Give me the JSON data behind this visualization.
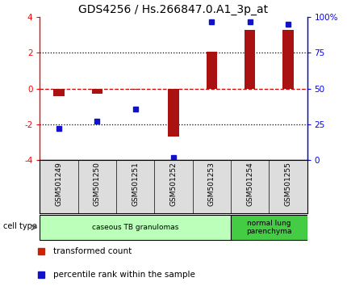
{
  "title": "GDS4256 / Hs.266847.0.A1_3p_at",
  "samples": [
    "GSM501249",
    "GSM501250",
    "GSM501251",
    "GSM501252",
    "GSM501253",
    "GSM501254",
    "GSM501255"
  ],
  "transformed_counts": [
    -0.4,
    -0.3,
    -0.05,
    -2.7,
    2.05,
    3.3,
    3.3
  ],
  "percentile_ranks": [
    22,
    27,
    36,
    2,
    97,
    97,
    95
  ],
  "ylim_left": [
    -4,
    4
  ],
  "ylim_right": [
    0,
    100
  ],
  "yticks_left": [
    -4,
    -2,
    0,
    2,
    4
  ],
  "yticks_right": [
    0,
    25,
    50,
    75,
    100
  ],
  "yticklabels_right": [
    "0",
    "25",
    "50",
    "75",
    "100%"
  ],
  "bar_color": "#aa1111",
  "dot_color": "#1111cc",
  "hline_color": "#cc0000",
  "dotted_line_color": "#000000",
  "cell_type_groups": [
    {
      "label": "caseous TB granulomas",
      "indices": [
        0,
        1,
        2,
        3,
        4
      ],
      "color": "#bbffbb"
    },
    {
      "label": "normal lung\nparenchyma",
      "indices": [
        5,
        6
      ],
      "color": "#44cc44"
    }
  ],
  "legend_items": [
    {
      "label": "transformed count",
      "color": "#cc2200"
    },
    {
      "label": "percentile rank within the sample",
      "color": "#1111cc"
    }
  ],
  "cell_type_label": "cell type",
  "title_fontsize": 10,
  "tick_fontsize": 7.5,
  "label_fontsize": 6.5,
  "legend_fontsize": 7.5
}
